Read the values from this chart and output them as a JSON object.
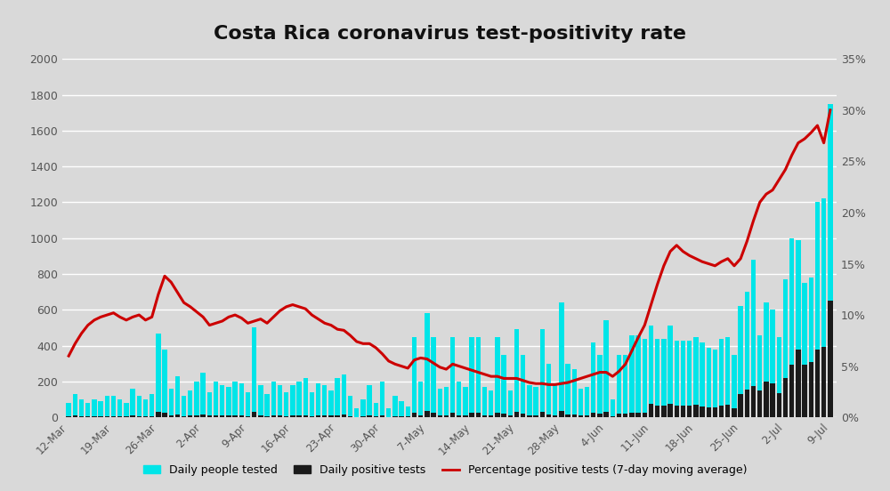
{
  "title": "Costa Rica coronavirus test-positivity rate",
  "background_color": "#d9d9d9",
  "bar_color_tested": "#00e5e8",
  "bar_color_positive": "#1a1a1a",
  "line_color": "#cc0000",
  "ylim_left": [
    0,
    2000
  ],
  "ylim_right": [
    0,
    0.35
  ],
  "yticks_left": [
    0,
    200,
    400,
    600,
    800,
    1000,
    1200,
    1400,
    1600,
    1800,
    2000
  ],
  "yticks_right_labels": [
    "0%",
    "5%",
    "10%",
    "15%",
    "20%",
    "25%",
    "30%",
    "35%"
  ],
  "yticks_right_vals": [
    0.0,
    0.05,
    0.1,
    0.15,
    0.2,
    0.25,
    0.3,
    0.35
  ],
  "xtick_labels": [
    "12-Mar",
    "19-Mar",
    "26-Mar",
    "2-Apr",
    "9-Apr",
    "16-Apr",
    "23-Apr",
    "30-Apr",
    "7-May",
    "14-May",
    "21-May",
    "28-May",
    "4-Jun",
    "11-Jun",
    "18-Jun",
    "25-Jun",
    "2-Jul",
    "9-Jul"
  ],
  "legend_labels": [
    "Daily people tested",
    "Daily positive tests",
    "Percentage positive tests (7-day moving average)"
  ],
  "tested": [
    80,
    130,
    100,
    80,
    100,
    90,
    120,
    120,
    100,
    80,
    160,
    120,
    100,
    130,
    470,
    380,
    160,
    230,
    120,
    150,
    200,
    250,
    140,
    200,
    180,
    170,
    200,
    190,
    140,
    500,
    180,
    130,
    200,
    180,
    140,
    180,
    200,
    220,
    140,
    190,
    180,
    150,
    220,
    240,
    120,
    50,
    100,
    180,
    80,
    200,
    50,
    120,
    90,
    60,
    450,
    200,
    580,
    450,
    160,
    170,
    450,
    200,
    170,
    450,
    450,
    170,
    150,
    450,
    350,
    150,
    490,
    350,
    180,
    170,
    490,
    300,
    190,
    640,
    300,
    270,
    160,
    170,
    420,
    350,
    540,
    100,
    350,
    350,
    460,
    460,
    440,
    510,
    440,
    440,
    510,
    430,
    430,
    430,
    450,
    420,
    390,
    380,
    440,
    450,
    350,
    620,
    700,
    880,
    460,
    640,
    600,
    450,
    770,
    1000,
    990,
    750,
    780,
    1200,
    1220,
    1750
  ],
  "positive": [
    5,
    10,
    8,
    5,
    6,
    5,
    7,
    7,
    6,
    5,
    10,
    7,
    6,
    8,
    30,
    25,
    10,
    15,
    8,
    10,
    12,
    15,
    9,
    12,
    11,
    10,
    12,
    11,
    8,
    30,
    11,
    8,
    12,
    11,
    8,
    11,
    12,
    13,
    8,
    11,
    11,
    9,
    13,
    14,
    7,
    3,
    6,
    11,
    5,
    12,
    3,
    7,
    5,
    4,
    28,
    12,
    35,
    27,
    10,
    10,
    27,
    12,
    10,
    27,
    27,
    10,
    9,
    27,
    21,
    9,
    29,
    21,
    11,
    10,
    29,
    18,
    11,
    38,
    18,
    16,
    10,
    10,
    25,
    21,
    32,
    6,
    21,
    21,
    28,
    28,
    26,
    77,
    66,
    66,
    77,
    65,
    65,
    65,
    68,
    63,
    58,
    57,
    66,
    68,
    52,
    130,
    155,
    175,
    150,
    200,
    190,
    135,
    220,
    295,
    380,
    295,
    310,
    380,
    395,
    650
  ],
  "positivity_ma": [
    0.06,
    0.072,
    0.082,
    0.09,
    0.095,
    0.098,
    0.1,
    0.102,
    0.098,
    0.095,
    0.098,
    0.1,
    0.095,
    0.098,
    0.12,
    0.138,
    0.132,
    0.122,
    0.112,
    0.108,
    0.103,
    0.098,
    0.09,
    0.092,
    0.094,
    0.098,
    0.1,
    0.097,
    0.092,
    0.094,
    0.096,
    0.092,
    0.098,
    0.104,
    0.108,
    0.11,
    0.108,
    0.106,
    0.1,
    0.096,
    0.092,
    0.09,
    0.086,
    0.085,
    0.08,
    0.074,
    0.072,
    0.072,
    0.068,
    0.062,
    0.055,
    0.052,
    0.05,
    0.048,
    0.056,
    0.058,
    0.057,
    0.053,
    0.049,
    0.047,
    0.052,
    0.05,
    0.048,
    0.046,
    0.044,
    0.042,
    0.04,
    0.04,
    0.038,
    0.038,
    0.038,
    0.036,
    0.034,
    0.033,
    0.033,
    0.032,
    0.032,
    0.033,
    0.034,
    0.036,
    0.038,
    0.04,
    0.042,
    0.044,
    0.044,
    0.04,
    0.045,
    0.052,
    0.065,
    0.078,
    0.09,
    0.11,
    0.13,
    0.148,
    0.162,
    0.168,
    0.162,
    0.158,
    0.155,
    0.152,
    0.15,
    0.148,
    0.152,
    0.155,
    0.148,
    0.155,
    0.172,
    0.192,
    0.21,
    0.218,
    0.222,
    0.232,
    0.242,
    0.256,
    0.268,
    0.272,
    0.278,
    0.285,
    0.268,
    0.3
  ]
}
